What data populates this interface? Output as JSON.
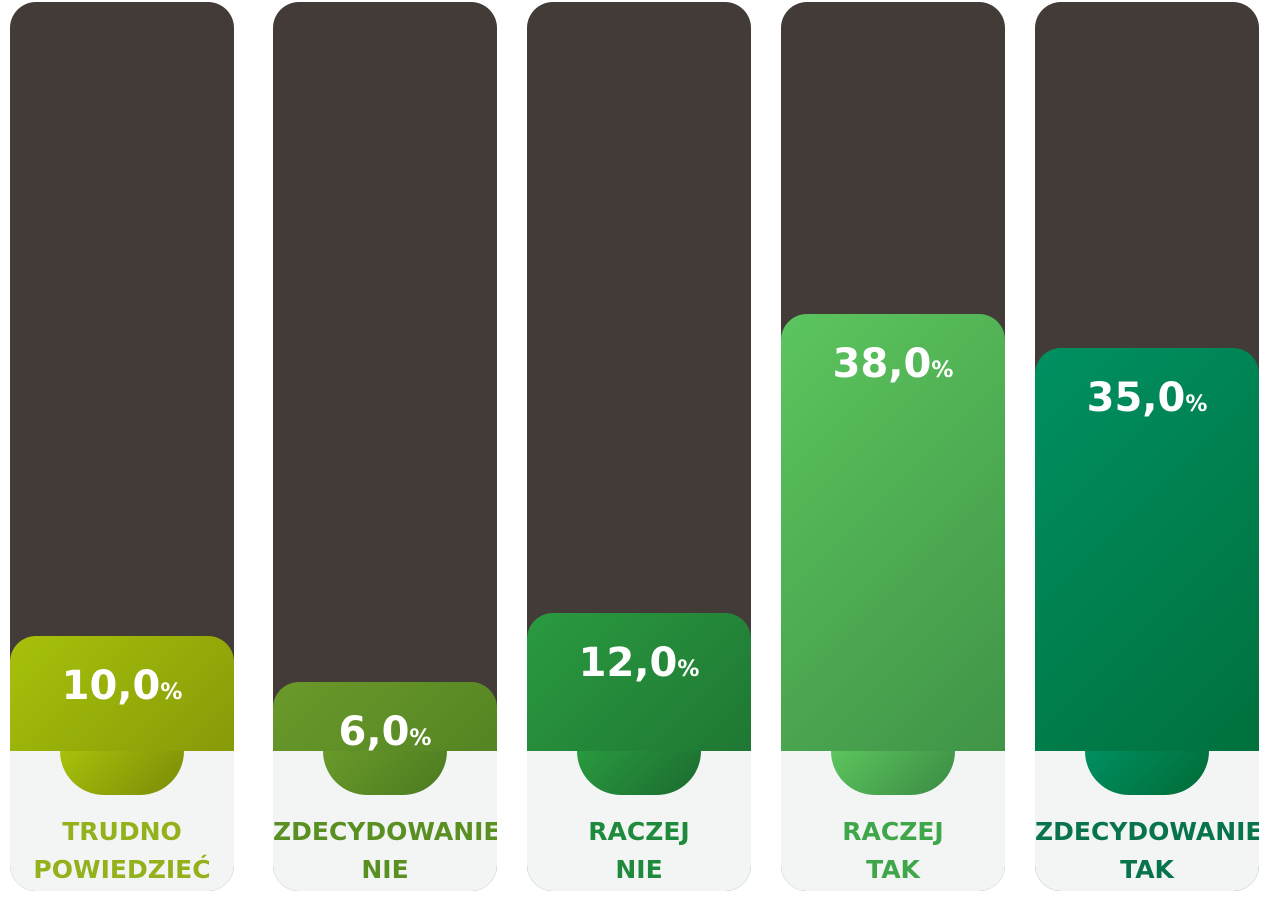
{
  "chart_data": {
    "type": "bar",
    "unit": "%",
    "categories": [
      [
        "TRUDNO",
        "POWIEDZIEĆ"
      ],
      [
        "ZDECYDOWANIE",
        "NIE"
      ],
      [
        "RACZEJ",
        "NIE"
      ],
      [
        "RACZEJ",
        "TAK"
      ],
      [
        "ZDECYDOWANIE",
        "TAK"
      ]
    ],
    "values": [
      10.0,
      6.0,
      12.0,
      38.0,
      35.0
    ],
    "value_labels": [
      "10,0",
      "6,0",
      "12,0",
      "38,0",
      "35,0"
    ],
    "colors": [
      {
        "from": "#a8c10a",
        "to": "#7a8a08",
        "label": "#93b11a"
      },
      {
        "from": "#6a9a2a",
        "to": "#4a7a20",
        "label": "#5a8f22"
      },
      {
        "from": "#2a9a40",
        "to": "#1a6a2e",
        "label": "#1f8a3b"
      },
      {
        "from": "#5cc55e",
        "to": "#3a8a42",
        "label": "#3fa64a"
      },
      {
        "from": "#009062",
        "to": "#006a34",
        "label": "#08744c"
      }
    ],
    "track_color": "#433b38",
    "footer_color": "#f2f5f4"
  }
}
